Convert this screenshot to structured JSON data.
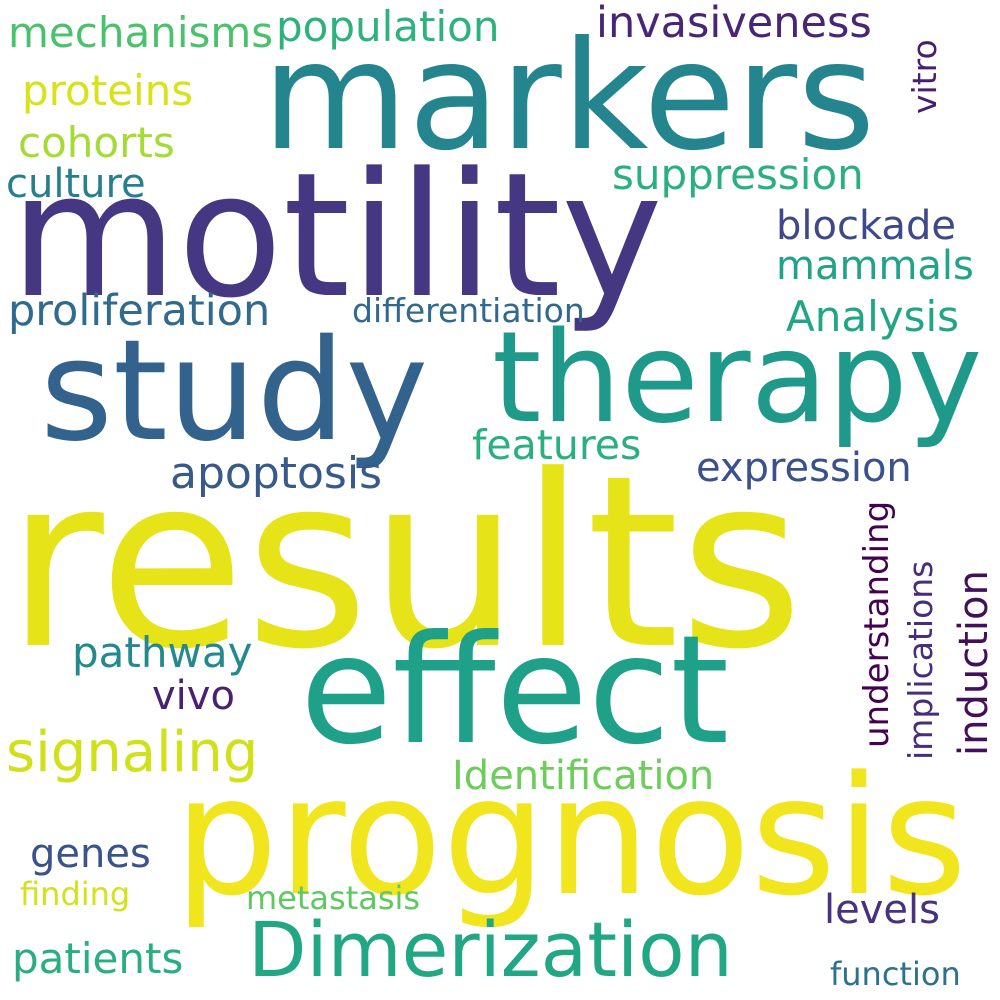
{
  "words": {
    "results": {
      "text": "results",
      "color": "#e6e419"
    },
    "prognosis": {
      "text": "prognosis",
      "color": "#f1e51d"
    },
    "motility": {
      "text": "motility",
      "color": "#453781"
    },
    "markers": {
      "text": "markers",
      "color": "#25858e"
    },
    "study": {
      "text": "study",
      "color": "#33638d"
    },
    "therapy": {
      "text": "therapy",
      "color": "#1f998a"
    },
    "effect": {
      "text": "effect",
      "color": "#1fa088"
    },
    "dimerization": {
      "text": "Dimerization",
      "color": "#22a785"
    },
    "signaling": {
      "text": "signaling",
      "color": "#d0e11c"
    },
    "apoptosis": {
      "text": "apoptosis",
      "color": "#38598c"
    },
    "proliferation": {
      "text": "proliferation",
      "color": "#306a8e"
    },
    "expression": {
      "text": "expression",
      "color": "#3b518b"
    },
    "identification": {
      "text": "Identification",
      "color": "#6ccd5a"
    },
    "features": {
      "text": "features",
      "color": "#2ab07f"
    },
    "mechanisms": {
      "text": "mechanisms",
      "color": "#4ac16d"
    },
    "population": {
      "text": "population",
      "color": "#2db27d"
    },
    "invasiveness": {
      "text": "invasiveness",
      "color": "#482576"
    },
    "proteins": {
      "text": "proteins",
      "color": "#d8e219"
    },
    "cohorts": {
      "text": "cohorts",
      "color": "#a5db36"
    },
    "culture": {
      "text": "culture",
      "color": "#277f8e"
    },
    "suppression": {
      "text": "suppression",
      "color": "#2ab07f"
    },
    "blockade": {
      "text": "blockade",
      "color": "#3e4989"
    },
    "mammals": {
      "text": "mammals",
      "color": "#20a386"
    },
    "analysis": {
      "text": "Analysis",
      "color": "#21a685"
    },
    "differentiation": {
      "text": "differentiation",
      "color": "#31688e"
    },
    "pathway": {
      "text": "pathway",
      "color": "#23898e"
    },
    "vivo": {
      "text": "vivo",
      "color": "#482173"
    },
    "genes": {
      "text": "genes",
      "color": "#3b528b"
    },
    "finding": {
      "text": "finding",
      "color": "#d2e21b"
    },
    "metastasis": {
      "text": "metastasis",
      "color": "#5ec962"
    },
    "levels": {
      "text": "levels",
      "color": "#46327e"
    },
    "patients": {
      "text": "patients",
      "color": "#29af7f"
    },
    "function": {
      "text": "function",
      "color": "#2c728e"
    },
    "vitro": {
      "text": "vitro",
      "color": "#481f70"
    },
    "understanding": {
      "text": "understanding",
      "color": "#440154"
    },
    "implications": {
      "text": "implications",
      "color": "#472d7b"
    },
    "induction": {
      "text": "induction",
      "color": "#440f5a"
    }
  }
}
